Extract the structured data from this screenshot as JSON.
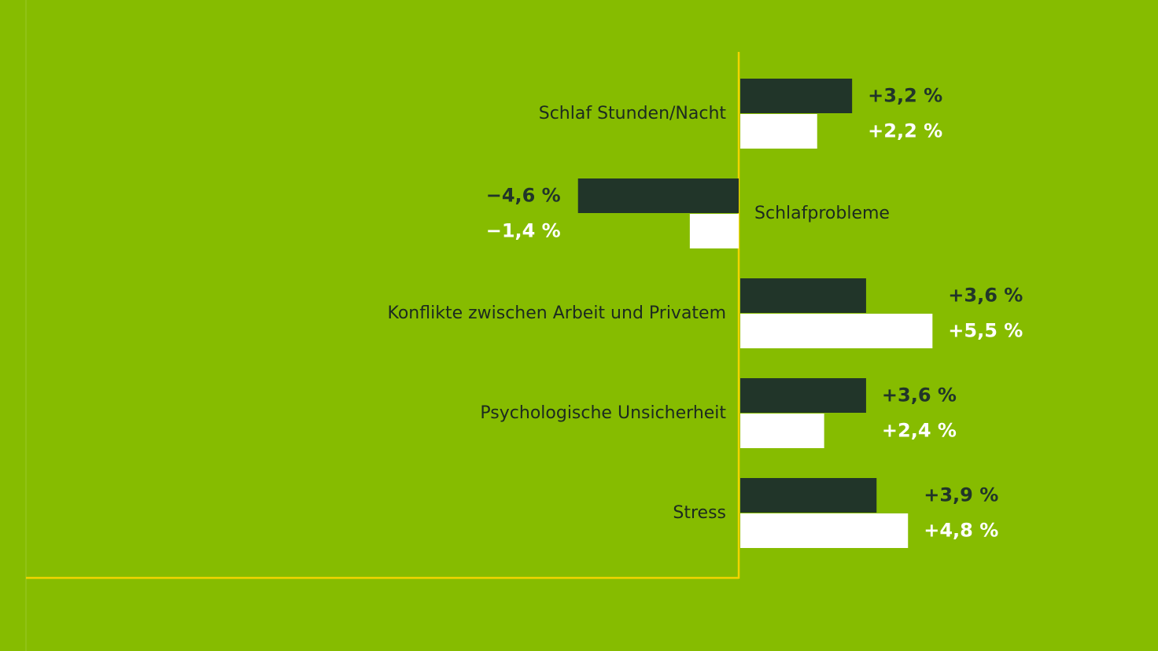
{
  "chart_data": {
    "type": "bar",
    "orientation": "horizontal",
    "categories": [
      "Schlaf Stunden/Nacht",
      "Schlafprobleme",
      "Konflikte zwischen Arbeit und Privatem",
      "Psychologische Unsicherheit",
      "Stress"
    ],
    "series": [
      {
        "color": "#213529",
        "values": [
          3.2,
          -4.6,
          3.6,
          3.6,
          3.9
        ],
        "value_labels": [
          "+3,2 %",
          "−4,6 %",
          "+3,6 %",
          "+3,6 %",
          "+3,9 %"
        ]
      },
      {
        "color": "#ffffff",
        "values": [
          2.2,
          -1.4,
          5.5,
          2.4,
          4.8
        ],
        "value_labels": [
          "+2,2 %",
          "−1,4 %",
          "+5,5 %",
          "+2,4 %",
          "+4,8 %"
        ]
      }
    ],
    "xlim": [
      -20.4,
      12
    ]
  }
}
